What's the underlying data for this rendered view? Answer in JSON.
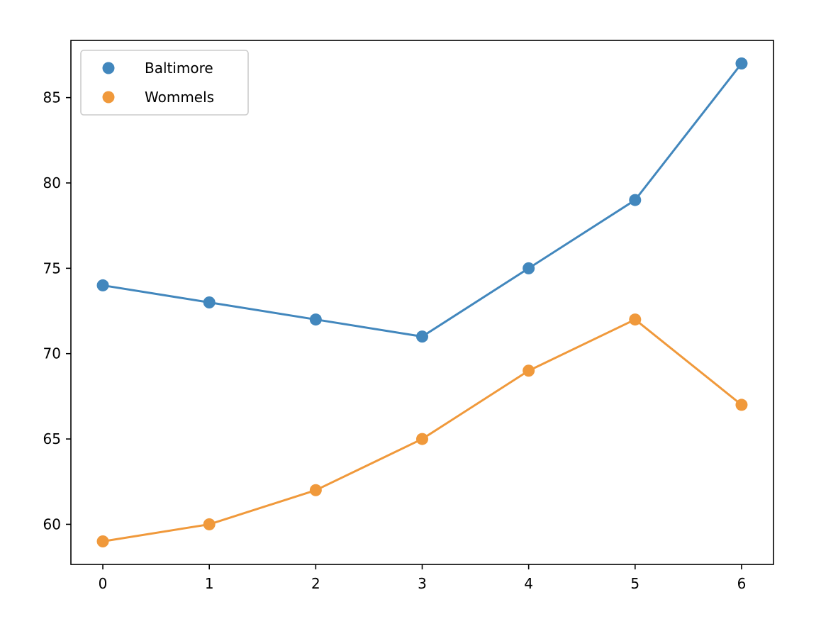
{
  "chart_data": {
    "type": "line",
    "title": "",
    "xlabel": "",
    "ylabel": "",
    "x": [
      0,
      1,
      2,
      3,
      4,
      5,
      6
    ],
    "xlim": [
      -0.3,
      6.3
    ],
    "ylim": [
      57.65,
      88.35
    ],
    "xticks": [
      0,
      1,
      2,
      3,
      4,
      5,
      6
    ],
    "yticks": [
      60,
      65,
      70,
      75,
      80,
      85
    ],
    "grid": false,
    "legend_position": "top-left",
    "markers": "circle",
    "series": [
      {
        "name": "Baltimore",
        "color": "#4287bd",
        "values": [
          74,
          73,
          72,
          71,
          75,
          79,
          87
        ]
      },
      {
        "name": "Wommels",
        "color": "#f0993b",
        "values": [
          59,
          60,
          62,
          65,
          69,
          72,
          67
        ]
      }
    ]
  }
}
